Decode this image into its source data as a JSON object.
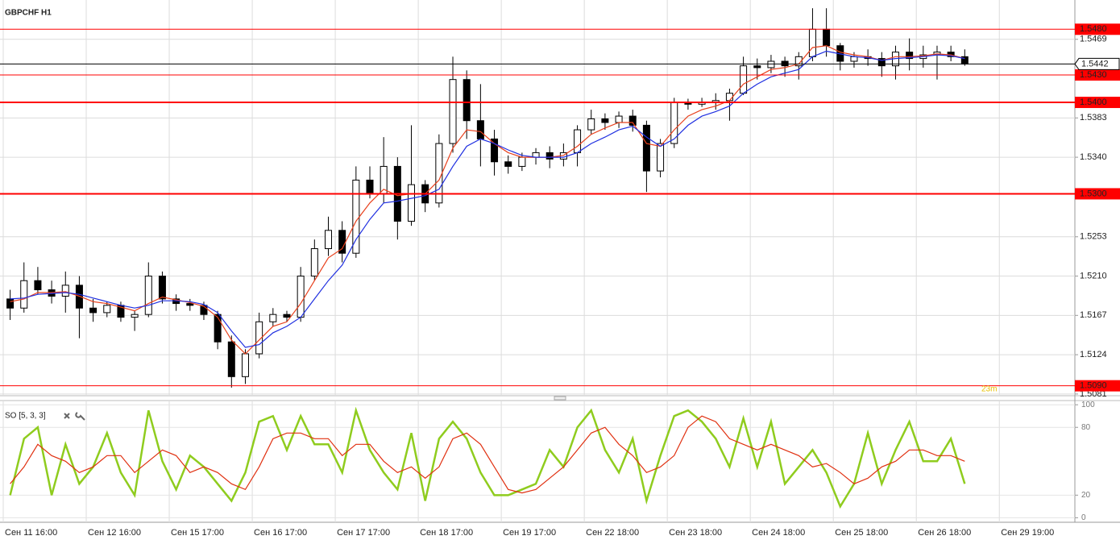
{
  "chart_data": [
    {
      "type": "candlestick",
      "title": "GBPCHF H1",
      "categories": [
        "Сен 11 16:00",
        null,
        null,
        null,
        null,
        null,
        "Сен 12 16:00",
        null,
        null,
        null,
        null,
        null,
        "Сен 15 17:00",
        null,
        null,
        null,
        null,
        null,
        "Сен 16 17:00",
        null,
        null,
        null,
        null,
        null,
        "Сен 17 17:00",
        null,
        null,
        null,
        null,
        null,
        "Сен 18 17:00",
        null,
        null,
        null,
        null,
        null,
        "Сен 19 17:00",
        null,
        null,
        null,
        null,
        null,
        "Сен 22 18:00",
        null,
        null,
        null,
        null,
        null,
        "Сен 23 18:00",
        null,
        null,
        null,
        null,
        null,
        "Сен 24 18:00",
        null,
        null,
        null,
        null,
        null,
        "Сен 25 18:00",
        null,
        null,
        null,
        null,
        null,
        "Сен 26 18:00",
        null,
        null,
        null,
        null,
        null,
        "Сен 29 19:00"
      ],
      "open": [
        1.5185,
        1.5175,
        1.5205,
        1.5195,
        1.5188,
        1.52,
        1.5175,
        1.517,
        1.5178,
        1.5165,
        1.5168,
        1.521,
        1.5185,
        1.518,
        1.5178,
        1.5168,
        1.5138,
        1.51,
        1.5125,
        1.516,
        1.5168,
        1.5165,
        1.521,
        1.524,
        1.526,
        1.5235,
        1.5315,
        1.53,
        1.533,
        1.527,
        1.531,
        1.529,
        1.5355,
        1.5425,
        1.538,
        1.536,
        1.5335,
        1.533,
        1.534,
        1.5345,
        1.5338,
        1.5345,
        1.537,
        1.5382,
        1.5378,
        1.5385,
        1.5375,
        1.5325,
        1.5355,
        1.54,
        1.5398,
        1.54,
        1.5402,
        1.541,
        1.544,
        1.5438,
        1.5445,
        1.544,
        1.545,
        1.548,
        1.5462,
        1.5445,
        1.545,
        1.5448,
        1.544,
        1.5455,
        1.5448,
        1.5452,
        1.5455,
        1.545,
        null,
        null,
        null
      ],
      "high": [
        1.5195,
        1.5225,
        1.522,
        1.5205,
        1.5215,
        1.521,
        1.5185,
        1.5182,
        1.5182,
        1.5172,
        1.5225,
        1.5215,
        1.519,
        1.5185,
        1.5182,
        1.5172,
        1.5145,
        1.513,
        1.517,
        1.5175,
        1.5172,
        1.522,
        1.525,
        1.5275,
        1.527,
        1.533,
        1.533,
        1.5362,
        1.534,
        1.5375,
        1.5315,
        1.5365,
        1.545,
        1.5435,
        1.542,
        1.537,
        1.5342,
        1.5345,
        1.535,
        1.5352,
        1.5355,
        1.5375,
        1.5392,
        1.5388,
        1.539,
        1.5392,
        1.538,
        1.536,
        1.5405,
        1.5404,
        1.5405,
        1.541,
        1.5415,
        1.545,
        1.5448,
        1.5452,
        1.545,
        1.5455,
        1.5503,
        1.5503,
        1.5465,
        1.5455,
        1.5458,
        1.5455,
        1.5462,
        1.547,
        1.5462,
        1.5462,
        1.5462,
        1.5458,
        null,
        null,
        null
      ],
      "low": [
        1.5162,
        1.517,
        1.519,
        1.518,
        1.517,
        1.5142,
        1.516,
        1.5165,
        1.516,
        1.515,
        1.5165,
        1.518,
        1.5172,
        1.5172,
        1.5162,
        1.513,
        1.5088,
        1.5092,
        1.512,
        1.5155,
        1.516,
        1.516,
        1.5205,
        1.5232,
        1.5225,
        1.523,
        1.5295,
        1.529,
        1.525,
        1.5265,
        1.528,
        1.5285,
        1.5345,
        1.536,
        1.533,
        1.532,
        1.5322,
        1.5325,
        1.5332,
        1.5328,
        1.533,
        1.533,
        1.5365,
        1.537,
        1.5372,
        1.5368,
        1.5302,
        1.5318,
        1.535,
        1.5392,
        1.5395,
        1.5392,
        1.538,
        1.5408,
        1.5425,
        1.5432,
        1.5428,
        1.5425,
        1.5445,
        1.545,
        1.5435,
        1.5438,
        1.544,
        1.5428,
        1.5425,
        1.5435,
        1.5438,
        1.5425,
        1.5445,
        1.544,
        null,
        null,
        null
      ],
      "close": [
        1.5175,
        1.5205,
        1.5195,
        1.5188,
        1.52,
        1.5175,
        1.517,
        1.5178,
        1.5165,
        1.5168,
        1.521,
        1.5185,
        1.518,
        1.5178,
        1.5168,
        1.5138,
        1.51,
        1.5125,
        1.516,
        1.5168,
        1.5165,
        1.521,
        1.524,
        1.526,
        1.5235,
        1.5315,
        1.53,
        1.533,
        1.527,
        1.531,
        1.529,
        1.5355,
        1.5425,
        1.538,
        1.536,
        1.5335,
        1.533,
        1.534,
        1.5345,
        1.5338,
        1.5345,
        1.537,
        1.5382,
        1.5378,
        1.5385,
        1.5375,
        1.5325,
        1.5355,
        1.54,
        1.5398,
        1.54,
        1.5402,
        1.541,
        1.544,
        1.5438,
        1.5445,
        1.544,
        1.545,
        1.548,
        1.5462,
        1.5445,
        1.545,
        1.5448,
        1.544,
        1.5455,
        1.5448,
        1.5452,
        1.5455,
        1.545,
        1.5442,
        null,
        null,
        null
      ],
      "up_color": "#ffffff",
      "down_color": "#000000",
      "series": [
        {
          "color": "#e8401c",
          "values": [
            1.5182,
            1.5185,
            1.5192,
            1.5192,
            1.5193,
            1.5188,
            1.5182,
            1.518,
            1.5176,
            1.5172,
            1.518,
            1.5187,
            1.5184,
            1.5181,
            1.5177,
            1.5165,
            1.514,
            1.5125,
            1.514,
            1.5155,
            1.516,
            1.518,
            1.5205,
            1.523,
            1.524,
            1.527,
            1.529,
            1.5305,
            1.5298,
            1.53,
            1.53,
            1.5315,
            1.535,
            1.537,
            1.5368,
            1.5355,
            1.5345,
            1.534,
            1.534,
            1.534,
            1.5342,
            1.5352,
            1.5365,
            1.5372,
            1.5378,
            1.5378,
            1.5355,
            1.5352,
            1.537,
            1.5385,
            1.5392,
            1.5396,
            1.5402,
            1.542,
            1.5428,
            1.5436,
            1.5438,
            1.5442,
            1.546,
            1.5462,
            1.5455,
            1.5452,
            1.545,
            1.5446,
            1.545,
            1.545,
            1.5451,
            1.5453,
            1.5452,
            1.5448,
            null,
            null,
            null
          ]
        },
        {
          "color": "#1f2fe0",
          "values": [
            1.5185,
            1.5186,
            1.519,
            1.5191,
            1.5192,
            1.519,
            1.5186,
            1.5182,
            1.5178,
            1.5175,
            1.5178,
            1.5183,
            1.5183,
            1.5182,
            1.5179,
            1.517,
            1.515,
            1.5132,
            1.5135,
            1.5148,
            1.5155,
            1.5165,
            1.5185,
            1.5205,
            1.5222,
            1.525,
            1.5272,
            1.529,
            1.5292,
            1.5295,
            1.5298,
            1.5305,
            1.533,
            1.5352,
            1.536,
            1.5355,
            1.5348,
            1.5342,
            1.534,
            1.534,
            1.534,
            1.5345,
            1.5355,
            1.5362,
            1.537,
            1.5374,
            1.5362,
            1.5352,
            1.536,
            1.5375,
            1.5385,
            1.539,
            1.5396,
            1.541,
            1.542,
            1.5428,
            1.5432,
            1.5436,
            1.545,
            1.5456,
            1.5453,
            1.545,
            1.5449,
            1.5446,
            1.5448,
            1.5449,
            1.545,
            1.5452,
            1.5451,
            1.5448,
            null,
            null,
            null
          ]
        }
      ],
      "ylim": [
        1.508,
        1.5512
      ],
      "yticks": [
        1.5469,
        1.5383,
        {
          "value": 1.534,
          "label": "1.5340"
        },
        1.5253,
        {
          "value": 1.521,
          "label": "1.5210"
        },
        1.5167,
        1.5124,
        1.5081
      ],
      "levels": [
        {
          "value": 1.548,
          "label": "1.5480",
          "color": "#ff0000",
          "width": 1
        },
        {
          "value": 1.543,
          "label": "1.5430",
          "color": "#ff0000",
          "width": 1
        },
        {
          "value": 1.54,
          "label": "1.5400",
          "color": "#ff0000",
          "width": 2
        },
        {
          "value": 1.53,
          "label": "1.5300",
          "color": "#ff0000",
          "width": 2
        },
        {
          "value": 1.509,
          "label": "1.5090",
          "color": "#ff0000",
          "width": 1
        }
      ],
      "current_price": 1.5442,
      "annotation": "23m",
      "grid": true
    },
    {
      "type": "line",
      "title": "SO [5, 3, 3]",
      "series": [
        {
          "color": "#8fcc1e",
          "values": [
            20,
            70,
            80,
            20,
            65,
            30,
            45,
            75,
            40,
            20,
            95,
            50,
            25,
            55,
            45,
            30,
            15,
            40,
            85,
            90,
            60,
            90,
            65,
            65,
            40,
            95,
            60,
            40,
            25,
            75,
            15,
            70,
            85,
            70,
            40,
            20,
            20,
            25,
            30,
            60,
            45,
            80,
            95,
            60,
            40,
            70,
            15,
            55,
            90,
            95,
            85,
            70,
            45,
            88,
            45,
            85,
            30,
            45,
            60,
            40,
            10,
            30,
            75,
            30,
            60,
            85,
            50,
            50,
            70,
            30,
            null,
            null,
            null
          ]
        },
        {
          "color": "#e03010",
          "values": [
            30,
            45,
            65,
            55,
            50,
            40,
            45,
            55,
            55,
            40,
            50,
            60,
            55,
            40,
            45,
            40,
            30,
            25,
            45,
            70,
            75,
            75,
            70,
            70,
            55,
            65,
            65,
            50,
            40,
            45,
            35,
            45,
            70,
            75,
            65,
            45,
            25,
            22,
            25,
            35,
            45,
            60,
            75,
            80,
            65,
            55,
            40,
            45,
            55,
            80,
            90,
            85,
            70,
            65,
            60,
            65,
            60,
            55,
            45,
            48,
            40,
            30,
            35,
            45,
            50,
            60,
            60,
            55,
            55,
            50,
            null,
            null,
            null
          ]
        }
      ],
      "ylim": [
        -4,
        103
      ],
      "yticks": [
        0,
        20,
        80,
        100
      ],
      "grid": true
    }
  ]
}
